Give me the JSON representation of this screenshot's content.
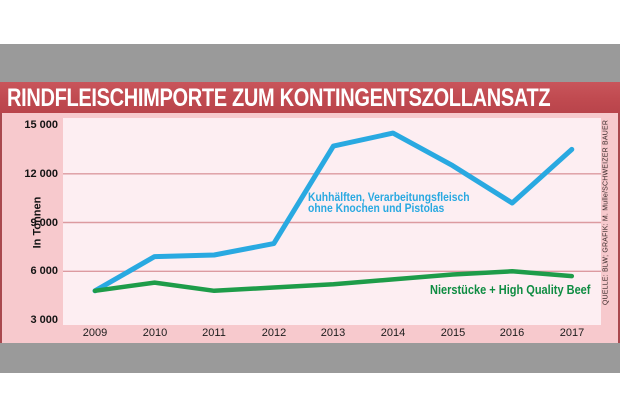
{
  "header": {
    "title": "RINDFLEISCHIMPORTE ZUM KONTINGENTSZOLLANSATZ"
  },
  "y_axis": {
    "label": "In Tonnen"
  },
  "annotations": {
    "blue_line_1": "Kuhhälften, Verarbeitungsfleisch",
    "blue_line_2": "ohne Knochen und Pistolas",
    "green_line": "Nierstücke + High Quality Beef"
  },
  "source": {
    "credit": "QUELLE: BLW; GRAFIK: M. Mulle/SCHWEIZER BAUER"
  },
  "colors": {
    "blue_line": "#29a9e1",
    "green_line": "#1e9c49",
    "gridline": "#dc9aa0",
    "title_bar": "#c04a50",
    "panel_pink": "#f7c9cd",
    "plot_pink": "#fdeef2",
    "gray_band": "#9a9a9a",
    "edge_red": "#a9484e"
  },
  "chart_data": {
    "type": "line",
    "title": "RINDFLEISCHIMPORTE ZUM KONTINGENTSZOLLANSATZ",
    "xlabel": "",
    "ylabel": "In Tonnen",
    "categories": [
      "2009",
      "2010",
      "2011",
      "2012",
      "2013",
      "2014",
      "2015",
      "2016",
      "2017"
    ],
    "series": [
      {
        "name": "Kuhhälften, Verarbeitungsfleisch ohne Knochen und Pistolas",
        "color": "#29a9e1",
        "values": [
          4800,
          6900,
          7000,
          7700,
          13700,
          14500,
          12500,
          10200,
          13500
        ]
      },
      {
        "name": "Nierstücke + High Quality Beef",
        "color": "#1e9c49",
        "values": [
          4800,
          5300,
          4800,
          5000,
          5200,
          5500,
          5800,
          6000,
          5700
        ]
      }
    ],
    "ylim": [
      3000,
      15000
    ],
    "yticks": [
      15000,
      12000,
      9000,
      6000,
      3000
    ],
    "ytick_labels": [
      "15 000",
      "12 000",
      "9 000",
      "6 000",
      "3 000"
    ],
    "gridline_values": [
      12000,
      9000,
      6000
    ],
    "grid": true,
    "legend_position": "inline-annotations"
  }
}
